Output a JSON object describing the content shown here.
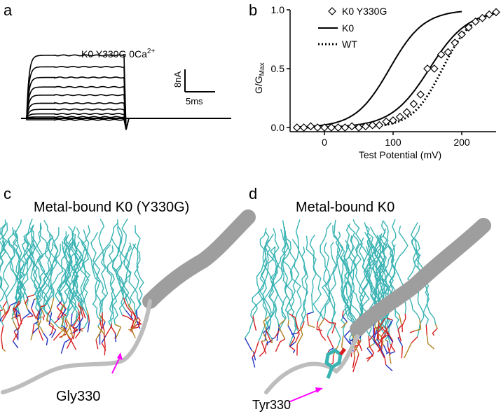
{
  "panels": {
    "a": {
      "letter": "a",
      "trace_label": "K0 Y330G 0Ca",
      "trace_label_sup": "2+",
      "scale_current": "8nA",
      "scale_time": "5ms"
    },
    "b": {
      "letter": "b"
    },
    "c": {
      "letter": "c",
      "title": "Metal-bound K0 (Y330G)",
      "residue": "Gly330"
    },
    "d": {
      "letter": "d",
      "title": "Metal-bound K0",
      "residue": "Tyr330"
    }
  },
  "colors": {
    "lipid_tail": "#3ab3b3",
    "oxygen": "#d62020",
    "nitrogen": "#2030c0",
    "phosphorus": "#b08020",
    "ribbon": "#a9a9a9",
    "arrow": "#ff00ff"
  },
  "chart_data": [
    {
      "type": "line",
      "panel": "a",
      "title": "K0 Y330G 0Ca2+",
      "xlabel": "",
      "ylabel": "",
      "scale_bar": {
        "current_nA": 8,
        "time_ms": 5
      },
      "pulse_duration_ms": 16.5,
      "steady_state_nA": [
        -0.5,
        0.5,
        1.6,
        3.2,
        5.4,
        8.3,
        11.2,
        14.6,
        18.4,
        22.5
      ],
      "tail_nA": -4
    },
    {
      "type": "scatter",
      "panel": "b",
      "xlabel": "Test Potential (mV)",
      "ylabel": "G/G",
      "ylabel_sub": "Max",
      "xlim": [
        -50,
        250
      ],
      "ylim": [
        0,
        1.0
      ],
      "xticks": [
        0,
        100,
        200
      ],
      "yticks": [
        0.0,
        0.5,
        1.0
      ],
      "legend_placement": "top-left",
      "series": [
        {
          "name": "K0 Y330G",
          "style": "diamond-markers",
          "v_half_mV": 153,
          "slope_mV": 28,
          "x": [
            -40,
            -30,
            -20,
            -10,
            0,
            10,
            20,
            30,
            40,
            50,
            60,
            70,
            80,
            90,
            100,
            110,
            120,
            130,
            140,
            150,
            160,
            170,
            180,
            190,
            200,
            210,
            220,
            230,
            240,
            250
          ],
          "y": [
            0.0,
            0.0,
            0.01,
            0.0,
            0.0,
            0.0,
            0.0,
            0.0,
            0.01,
            0.0,
            0.01,
            0.02,
            0.02,
            0.05,
            0.06,
            0.09,
            0.13,
            0.2,
            0.28,
            0.5,
            0.5,
            0.62,
            0.64,
            0.72,
            0.79,
            0.85,
            0.9,
            0.93,
            0.96,
            0.98
          ]
        },
        {
          "name": "K0",
          "style": "solid",
          "v_half_mV": 95,
          "slope_mV": 25
        },
        {
          "name": "WT",
          "style": "dotted",
          "v_half_mV": 172,
          "slope_mV": 22
        }
      ]
    }
  ]
}
